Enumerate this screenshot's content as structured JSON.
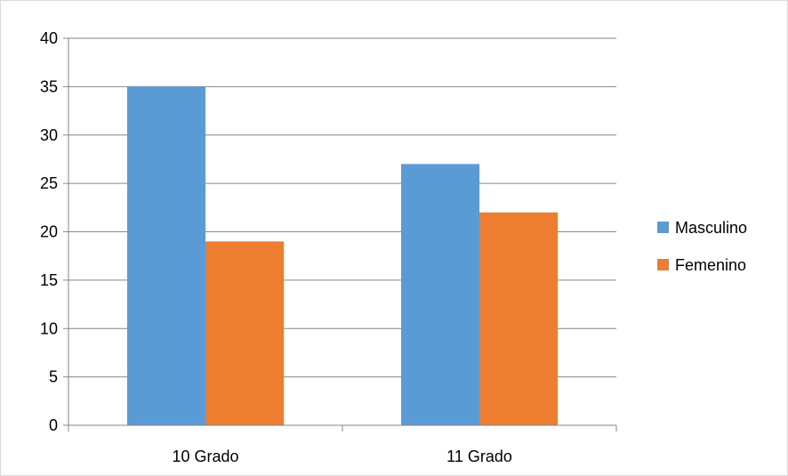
{
  "chart_data": {
    "type": "bar",
    "title": "",
    "xlabel": "",
    "ylabel": "",
    "categories": [
      "10 Grado",
      "11 Grado"
    ],
    "series": [
      {
        "name": "Masculino",
        "values": [
          35,
          27
        ],
        "color": "#5B9BD5"
      },
      {
        "name": "Femenino",
        "values": [
          19,
          22
        ],
        "color": "#ED7D31"
      }
    ],
    "ylim": [
      0,
      40
    ],
    "yticks": [
      0,
      5,
      10,
      15,
      20,
      25,
      30,
      35,
      40
    ],
    "grid": true,
    "legend": "right"
  }
}
